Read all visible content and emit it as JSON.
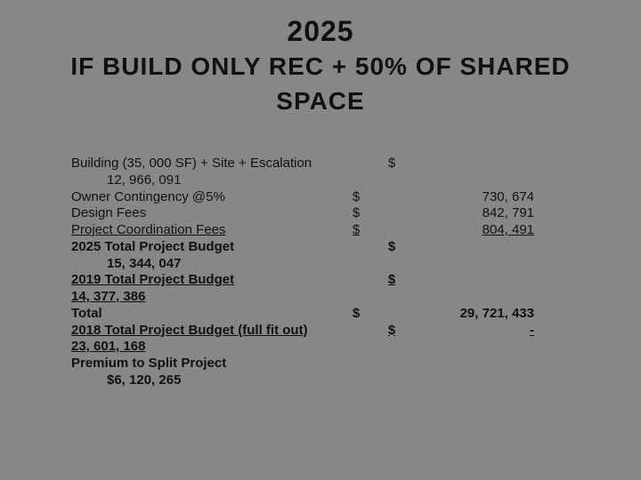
{
  "title": {
    "year": "2025",
    "line1": "IF BUILD ONLY REC + 50% OF SHARED",
    "line2": "SPACE"
  },
  "rows": {
    "building_label": "Building (35, 000 SF) + Site + Escalation",
    "building_sym": "$",
    "building_value": "12, 966, 091",
    "owner_label": "Owner Contingency @5%",
    "owner_sym": "$",
    "owner_value": "730, 674",
    "design_label": "Design Fees",
    "design_sym": "$",
    "design_value": "842, 791",
    "coord_label": "Project Coordination Fees",
    "coord_sym": "$",
    "coord_value": "804, 491",
    "tpb2025_label": "2025 Total Project Budget",
    "tpb2025_sym": "$",
    "tpb2025_value": "15, 344, 047",
    "tpb2019_label": "2019 Total Project Budget",
    "tpb2019_sym": "$",
    "tpb2019_value": "14, 377, 386",
    "total_label": "Total",
    "total_sym": "$",
    "total_value": "29, 721, 433",
    "tpb2018_label": "2018 Total Project Budget (full fit out)",
    "tpb2018_sym": "$",
    "tpb2018_dash": "-",
    "tpb2018_value": "23, 601, 168",
    "premium_label": "Premium to Split Project",
    "premium_value": "$6, 120, 265"
  },
  "style": {
    "background": "#878787",
    "text_color": "#111111",
    "title_fontsize": 32,
    "body_fontsize": 15,
    "font_family": "Arial"
  }
}
